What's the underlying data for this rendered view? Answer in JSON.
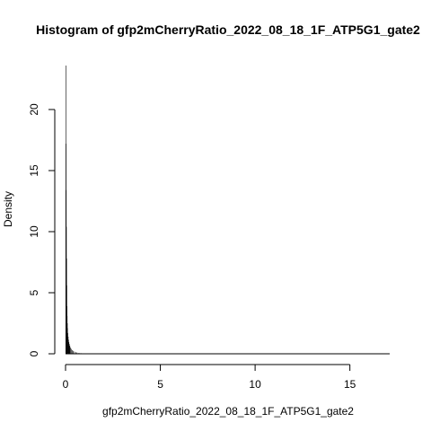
{
  "chart_data": {
    "type": "bar",
    "title": "Histogram of gfp2mCherryRatio_2022_08_18_1F_ATP5G1_gate2",
    "xlabel": "gfp2mCherryRatio_2022_08_18_1F_ATP5G1_gate2",
    "ylabel": "Density",
    "xlim": [
      0,
      17.1
    ],
    "ylim": [
      0,
      23.6
    ],
    "x_ticks": [
      0,
      5,
      10,
      15
    ],
    "x_tick_labels": [
      "0",
      "5",
      "10",
      "15"
    ],
    "y_ticks": [
      0,
      5,
      10,
      15,
      20
    ],
    "y_tick_labels": [
      "0",
      "5",
      "10",
      "15",
      "20"
    ],
    "bin_width": 0.01,
    "bins": [
      {
        "x": 0.005,
        "y": 23.6
      },
      {
        "x": 0.015,
        "y": 17.2
      },
      {
        "x": 0.025,
        "y": 13.4
      },
      {
        "x": 0.035,
        "y": 10.4
      },
      {
        "x": 0.045,
        "y": 7.8
      },
      {
        "x": 0.055,
        "y": 5.6
      },
      {
        "x": 0.065,
        "y": 3.9
      },
      {
        "x": 0.075,
        "y": 3.1
      },
      {
        "x": 0.085,
        "y": 2.5
      },
      {
        "x": 0.095,
        "y": 2.1
      },
      {
        "x": 0.11,
        "y": 1.7
      },
      {
        "x": 0.13,
        "y": 1.4
      },
      {
        "x": 0.15,
        "y": 1.15
      },
      {
        "x": 0.17,
        "y": 0.95
      },
      {
        "x": 0.19,
        "y": 0.8
      },
      {
        "x": 0.22,
        "y": 0.65
      },
      {
        "x": 0.26,
        "y": 0.5
      },
      {
        "x": 0.3,
        "y": 0.4
      },
      {
        "x": 0.35,
        "y": 0.3
      },
      {
        "x": 0.4,
        "y": 0.24
      },
      {
        "x": 0.46,
        "y": 0.18
      },
      {
        "x": 0.53,
        "y": 0.13
      },
      {
        "x": 0.6,
        "y": 0.1
      },
      {
        "x": 0.7,
        "y": 0.07
      },
      {
        "x": 0.8,
        "y": 0.05
      },
      {
        "x": 0.95,
        "y": 0.03
      },
      {
        "x": 1.1,
        "y": 0.02
      },
      {
        "x": 1.3,
        "y": 0.01
      },
      {
        "x": 1.6,
        "y": 0.006
      },
      {
        "x": 2.0,
        "y": 0.004
      },
      {
        "x": 3.0,
        "y": 0.002
      },
      {
        "x": 5.0,
        "y": 0.001
      },
      {
        "x": 8.0,
        "y": 0.001
      },
      {
        "x": 12.0,
        "y": 0.0005
      },
      {
        "x": 17.0,
        "y": 0.0005
      }
    ]
  }
}
